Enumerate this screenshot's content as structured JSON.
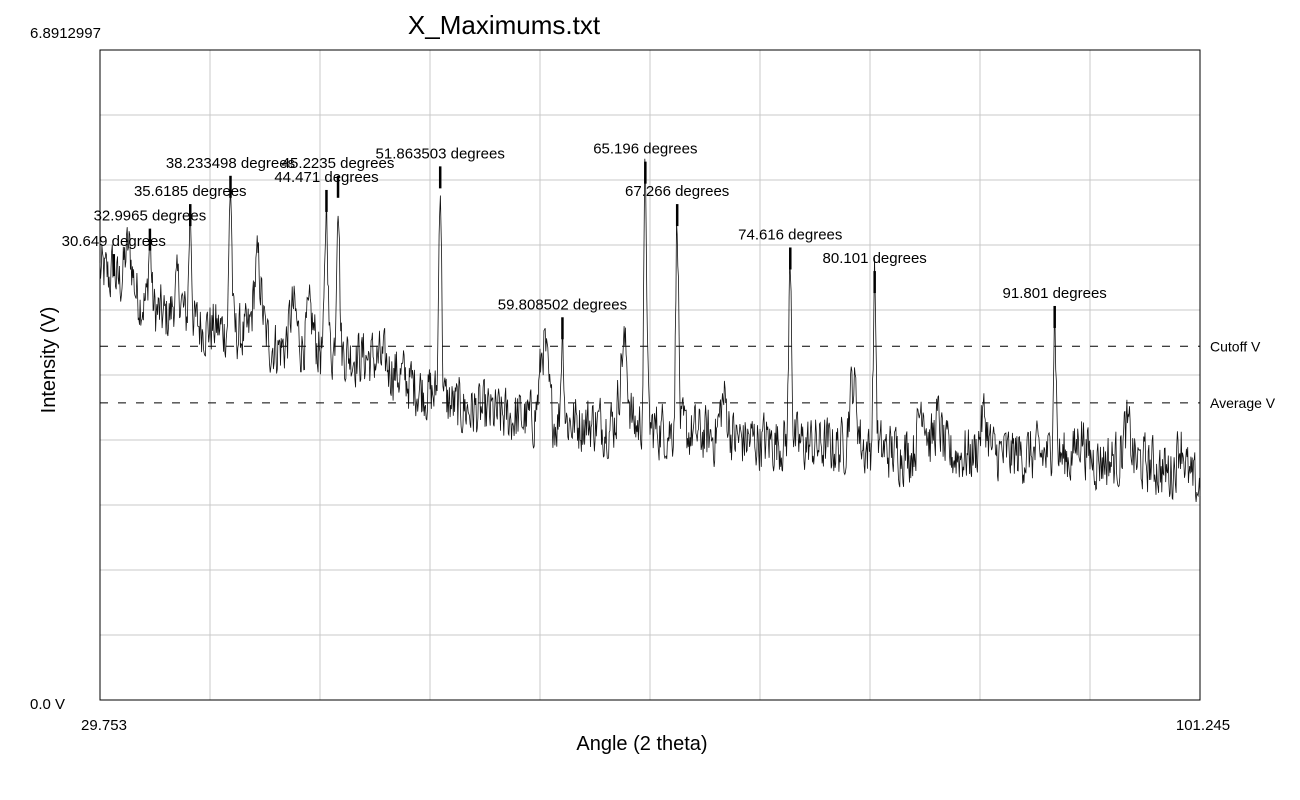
{
  "chart_data": {
    "type": "line",
    "title": "X_Maximums.txt",
    "xlabel": "Angle (2 theta)",
    "ylabel": "Intensity (V)",
    "xlim": [
      29.753,
      101.245
    ],
    "ylim": [
      0.0,
      6.8912997
    ],
    "x_tick_labels": {
      "min": "29.753",
      "max": "101.245"
    },
    "y_tick_labels": {
      "min": "0.0 V",
      "max": "6.8912997"
    },
    "grid": true,
    "grid_divisions": {
      "x": 10,
      "y": 10
    },
    "reference_lines": [
      {
        "label": "Cutoff V",
        "value": 3.75
      },
      {
        "label": "Average V",
        "value": 3.15
      }
    ],
    "peaks": [
      {
        "x": 30.649,
        "y": 4.77,
        "label": "30.649 degrees"
      },
      {
        "x": 32.9965,
        "y": 5.04,
        "label": "32.9965 degrees"
      },
      {
        "x": 35.6185,
        "y": 5.3,
        "label": "35.6185 degrees"
      },
      {
        "x": 38.233498,
        "y": 5.6,
        "label": "38.233498 degrees"
      },
      {
        "x": 44.471,
        "y": 5.45,
        "label": "44.471 degrees"
      },
      {
        "x": 45.2235,
        "y": 5.6,
        "label": "45.2235 degrees"
      },
      {
        "x": 51.863503,
        "y": 5.7,
        "label": "51.863503 degrees"
      },
      {
        "x": 59.808502,
        "y": 4.1,
        "label": "59.808502 degrees"
      },
      {
        "x": 65.196,
        "y": 5.75,
        "label": "65.196 degrees"
      },
      {
        "x": 67.266,
        "y": 5.3,
        "label": "67.266 degrees"
      },
      {
        "x": 74.616,
        "y": 4.84,
        "label": "74.616 degrees"
      },
      {
        "x": 80.101,
        "y": 4.59,
        "label": "80.101 degrees"
      },
      {
        "x": 91.801,
        "y": 4.22,
        "label": "91.801 degrees"
      }
    ],
    "baseline": [
      [
        29.753,
        4.55
      ],
      [
        31.5,
        4.35
      ],
      [
        34,
        4.05
      ],
      [
        37,
        3.95
      ],
      [
        39.5,
        3.85
      ],
      [
        42,
        3.7
      ],
      [
        45,
        3.7
      ],
      [
        48,
        3.6
      ],
      [
        50,
        3.35
      ],
      [
        53,
        3.1
      ],
      [
        56,
        3.0
      ],
      [
        60,
        2.95
      ],
      [
        65,
        2.9
      ],
      [
        70,
        2.78
      ],
      [
        75,
        2.72
      ],
      [
        80,
        2.65
      ],
      [
        85,
        2.6
      ],
      [
        90,
        2.6
      ],
      [
        95,
        2.55
      ],
      [
        98,
        2.5
      ],
      [
        101.245,
        2.25
      ]
    ],
    "bumps": [
      [
        31.6,
        0.45
      ],
      [
        34.8,
        0.35
      ],
      [
        40.0,
        0.8
      ],
      [
        42.3,
        0.45
      ],
      [
        43.4,
        0.35
      ],
      [
        58.6,
        0.8
      ],
      [
        63.8,
        0.85
      ],
      [
        70.3,
        0.4
      ],
      [
        78.7,
        0.7
      ],
      [
        83.2,
        0.55
      ],
      [
        84.2,
        0.35
      ],
      [
        87.2,
        0.4
      ],
      [
        93.5,
        0.25
      ],
      [
        96.5,
        0.35
      ],
      [
        100.0,
        0.4
      ]
    ]
  }
}
